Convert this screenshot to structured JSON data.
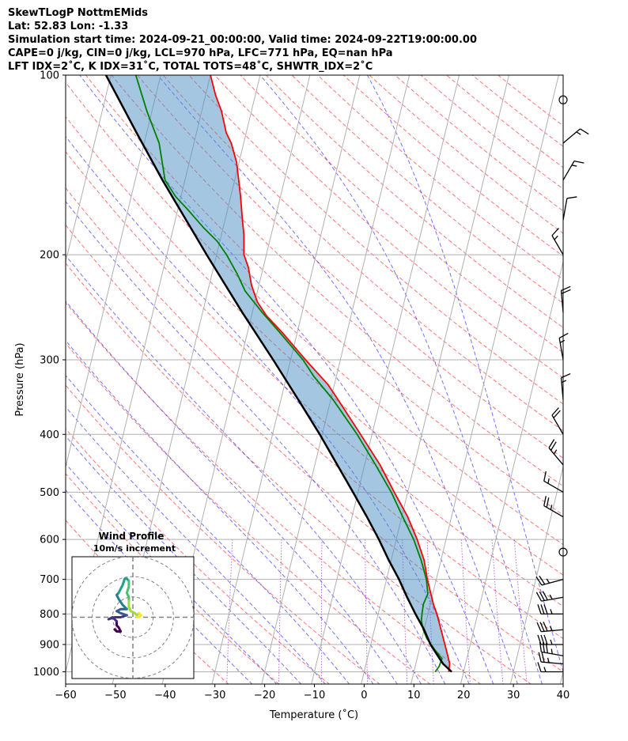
{
  "header": {
    "line1": "SkewTLogP NottmEMids",
    "line2": "Lat: 52.83   Lon: -1.33",
    "line3": "Simulation start time: 2024-09-21_00:00:00, Valid time: 2024-09-22T19:00:00.00",
    "line4": "CAPE=0 j/kg, CIN=0 j/kg, LCL=970 hPa, LFC=771 hPa, EQ=nan hPa",
    "line5": "LFT IDX=2˚C, K IDX=31˚C, TOTAL TOTS=48˚C, SHWTR_IDX=2˚C"
  },
  "chart_data": [
    {
      "type": "line",
      "subtype": "skew-t log-p",
      "xlabel": "Temperature (˚C)",
      "ylabel": "Pressure (hPa)",
      "xlim": [
        -60,
        40
      ],
      "ylim": [
        1050,
        100
      ],
      "yscale": "log",
      "xticks": [
        "−60",
        "−50",
        "−40",
        "−30",
        "−20",
        "−10",
        "0",
        "10",
        "20",
        "30",
        "40"
      ],
      "xtick_values": [
        -60,
        -50,
        -40,
        -30,
        -20,
        -10,
        0,
        10,
        20,
        30,
        40
      ],
      "yticks": [
        1000,
        900,
        800,
        700,
        600,
        500,
        400,
        300,
        200,
        100
      ],
      "grid": true,
      "series": [
        {
          "role": "temperature",
          "color": "#ff0000",
          "points": [
            [
              1000,
              17.0
            ],
            [
              970,
              16.8
            ],
            [
              950,
              16.3
            ],
            [
              900,
              14.9
            ],
            [
              850,
              13.4
            ],
            [
              800,
              11.8
            ],
            [
              770,
              10.6
            ],
            [
              700,
              8.2
            ],
            [
              650,
              6.6
            ],
            [
              600,
              4.2
            ],
            [
              550,
              1.2
            ],
            [
              500,
              -2.7
            ],
            [
              450,
              -6.9
            ],
            [
              400,
              -12.3
            ],
            [
              350,
              -18.5
            ],
            [
              330,
              -21.3
            ],
            [
              300,
              -27.0
            ],
            [
              270,
              -33.0
            ],
            [
              253,
              -37.0
            ],
            [
              240,
              -39.5
            ],
            [
              225,
              -41.5
            ],
            [
              210,
              -43.0
            ],
            [
              200,
              -44.5
            ],
            [
              185,
              -45.5
            ],
            [
              175,
              -46.5
            ],
            [
              160,
              -48.0
            ],
            [
              150,
              -49.2
            ],
            [
              140,
              -50.5
            ],
            [
              130,
              -52.5
            ],
            [
              125,
              -54.0
            ],
            [
              115,
              -56.0
            ],
            [
              108,
              -58.0
            ],
            [
              100,
              -60.0
            ]
          ]
        },
        {
          "role": "dewpoint",
          "color": "#008000",
          "points": [
            [
              1000,
              14.3
            ],
            [
              980,
              14.8
            ],
            [
              950,
              15.0
            ],
            [
              920,
              13.2
            ],
            [
              880,
              11.0
            ],
            [
              850,
              9.8
            ],
            [
              820,
              9.0
            ],
            [
              800,
              8.8
            ],
            [
              770,
              8.6
            ],
            [
              740,
              9.0
            ],
            [
              700,
              8.0
            ],
            [
              650,
              6.0
            ],
            [
              600,
              3.5
            ],
            [
              550,
              0.2
            ],
            [
              500,
              -3.3
            ],
            [
              450,
              -7.8
            ],
            [
              400,
              -13.0
            ],
            [
              350,
              -19.5
            ],
            [
              320,
              -24.5
            ],
            [
              300,
              -27.5
            ],
            [
              270,
              -33.5
            ],
            [
              250,
              -38.0
            ],
            [
              230,
              -42.5
            ],
            [
              215,
              -45.0
            ],
            [
              200,
              -48.0
            ],
            [
              190,
              -50.5
            ],
            [
              180,
              -54.0
            ],
            [
              168,
              -58.0
            ],
            [
              160,
              -61.0
            ],
            [
              150,
              -64.0
            ],
            [
              130,
              -67.0
            ],
            [
              115,
              -71.0
            ],
            [
              100,
              -75.0
            ]
          ]
        },
        {
          "role": "parcel profile",
          "color": "#000000",
          "points": [
            [
              1000,
              17.6
            ],
            [
              970,
              15.5
            ],
            [
              950,
              14.5
            ],
            [
              900,
              12.0
            ],
            [
              850,
              10.0
            ],
            [
              800,
              7.5
            ],
            [
              750,
              5.0
            ],
            [
              700,
              2.5
            ],
            [
              650,
              -0.5
            ],
            [
              600,
              -3.5
            ],
            [
              550,
              -7.0
            ],
            [
              500,
              -11.0
            ],
            [
              450,
              -15.5
            ],
            [
              400,
              -20.5
            ],
            [
              350,
              -26.5
            ],
            [
              300,
              -33.5
            ],
            [
              250,
              -42.0
            ],
            [
              200,
              -52.0
            ],
            [
              150,
              -64.5
            ],
            [
              125,
              -72.0
            ],
            [
              100,
              -81.0
            ]
          ]
        }
      ],
      "wind_barbs": [
        {
          "pressure": 1000,
          "speed_kt": 15,
          "dir_deg": 270
        },
        {
          "pressure": 970,
          "speed_kt": 25,
          "dir_deg": 275
        },
        {
          "pressure": 940,
          "speed_kt": 35,
          "dir_deg": 280
        },
        {
          "pressure": 900,
          "speed_kt": 35,
          "dir_deg": 270
        },
        {
          "pressure": 850,
          "speed_kt": 35,
          "dir_deg": 265
        },
        {
          "pressure": 800,
          "speed_kt": 35,
          "dir_deg": 270
        },
        {
          "pressure": 750,
          "speed_kt": 35,
          "dir_deg": 260
        },
        {
          "pressure": 700,
          "speed_kt": 25,
          "dir_deg": 255
        },
        {
          "pressure": 630,
          "speed_kt": 0,
          "dir_deg": 0
        },
        {
          "pressure": 550,
          "speed_kt": 25,
          "dir_deg": 300
        },
        {
          "pressure": 500,
          "speed_kt": 15,
          "dir_deg": 300
        },
        {
          "pressure": 450,
          "speed_kt": 25,
          "dir_deg": 320
        },
        {
          "pressure": 400,
          "speed_kt": 20,
          "dir_deg": 330
        },
        {
          "pressure": 350,
          "speed_kt": 15,
          "dir_deg": 355
        },
        {
          "pressure": 300,
          "speed_kt": 15,
          "dir_deg": 350
        },
        {
          "pressure": 250,
          "speed_kt": 20,
          "dir_deg": 355
        },
        {
          "pressure": 200,
          "speed_kt": 15,
          "dir_deg": 330
        },
        {
          "pressure": 175,
          "speed_kt": 10,
          "dir_deg": 10
        },
        {
          "pressure": 150,
          "speed_kt": 15,
          "dir_deg": 30
        },
        {
          "pressure": 130,
          "speed_kt": 15,
          "dir_deg": 50
        },
        {
          "pressure": 110,
          "speed_kt": 0,
          "dir_deg": 0
        }
      ]
    },
    {
      "type": "scatter",
      "subtype": "hodograph",
      "title": "Wind Profile",
      "subtitle": "10m/s increment",
      "rings": [
        10,
        20,
        30
      ],
      "range": [
        -30,
        30
      ],
      "line_segments": [
        {
          "color": "#440154",
          "points": [
            [
              -9,
              -6
            ],
            [
              -8,
              -7
            ],
            [
              -6,
              -7
            ],
            [
              -7,
              -5
            ],
            [
              -8,
              -4
            ],
            [
              -8,
              -2
            ]
          ]
        },
        {
          "color": "#46327e",
          "points": [
            [
              -8,
              -2
            ],
            [
              -10,
              0
            ],
            [
              -12,
              -1
            ],
            [
              -9,
              0
            ],
            [
              -6,
              0
            ],
            [
              -3,
              1
            ]
          ]
        },
        {
          "color": "#365c8d",
          "points": [
            [
              -3,
              1
            ],
            [
              -6,
              2
            ],
            [
              -8,
              3
            ],
            [
              -6,
              4
            ],
            [
              -3,
              4
            ]
          ]
        },
        {
          "color": "#277f8e",
          "points": [
            [
              -3,
              4
            ],
            [
              -5,
              6
            ],
            [
              -7,
              9
            ],
            [
              -8,
              11
            ],
            [
              -7,
              12
            ]
          ]
        },
        {
          "color": "#1fa187",
          "points": [
            [
              -7,
              12
            ],
            [
              -6,
              14
            ],
            [
              -5,
              16
            ],
            [
              -4,
              19
            ],
            [
              -3,
              19
            ],
            [
              -2,
              18
            ]
          ]
        },
        {
          "color": "#4ac16d",
          "points": [
            [
              -2,
              18
            ],
            [
              -2,
              15
            ],
            [
              -3,
              12
            ],
            [
              -2,
              10
            ],
            [
              -2,
              8
            ]
          ]
        },
        {
          "color": "#a0da39",
          "points": [
            [
              -2,
              8
            ],
            [
              -2,
              5
            ],
            [
              -1,
              3
            ],
            [
              1,
              2
            ],
            [
              2,
              1
            ],
            [
              3,
              2
            ]
          ]
        },
        {
          "color": "#fde725",
          "points": [
            [
              3,
              2
            ],
            [
              4,
              1
            ],
            [
              3,
              0
            ],
            [
              2,
              0
            ]
          ]
        }
      ]
    }
  ]
}
